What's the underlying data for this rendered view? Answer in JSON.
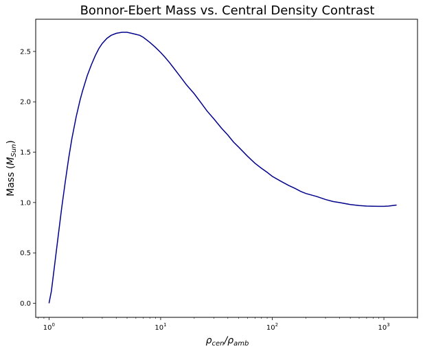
{
  "chart_data": {
    "type": "line",
    "title": "Bonnor-Ebert Mass vs. Central Density Contrast",
    "xlabel": {
      "main": "ρ",
      "sub1": "cen",
      "sep": "/ρ",
      "sub2": "amb"
    },
    "ylabel": {
      "prefix": "Mass (",
      "main": "M",
      "sub": "Sun",
      "suffix": ")"
    },
    "xscale": "log",
    "xlim": [
      0.76,
      2000
    ],
    "ylim": [
      -0.14,
      2.82
    ],
    "xticks": [
      {
        "value": 1,
        "base": "10",
        "exp": "0"
      },
      {
        "value": 10,
        "base": "10",
        "exp": "1"
      },
      {
        "value": 100,
        "base": "10",
        "exp": "2"
      },
      {
        "value": 1000,
        "base": "10",
        "exp": "3"
      }
    ],
    "yticks": [
      "0.0",
      "0.5",
      "1.0",
      "1.5",
      "2.0",
      "2.5"
    ],
    "grid": false,
    "line_color": "#00008b",
    "series": [
      {
        "x": [
          1.0,
          1.05,
          1.1,
          1.2,
          1.3,
          1.4,
          1.5,
          1.6,
          1.75,
          1.9,
          2.0,
          2.2,
          2.4,
          2.6,
          2.8,
          3.0,
          3.3,
          3.6,
          4.0,
          4.5,
          5.0,
          5.5,
          6.0,
          6.5,
          7.0,
          8.0,
          9.0,
          10.0,
          11.0,
          12.0,
          13.0,
          15.0,
          17.0,
          20.0,
          23.0,
          26.0,
          30.0,
          35.0,
          40.0,
          45.0,
          50.0,
          60.0,
          70.0,
          80.0,
          90.0,
          100.0,
          120.0,
          140.0,
          160.0,
          180.0,
          200.0,
          250.0,
          300.0,
          350.0,
          400.0,
          500.0,
          600.0,
          700.0,
          800.0,
          900.0,
          1000.0,
          1100.0,
          1300.0
        ],
        "y": [
          0.0,
          0.12,
          0.3,
          0.64,
          0.95,
          1.21,
          1.44,
          1.63,
          1.85,
          2.02,
          2.11,
          2.26,
          2.37,
          2.46,
          2.53,
          2.58,
          2.63,
          2.66,
          2.68,
          2.69,
          2.69,
          2.68,
          2.67,
          2.66,
          2.64,
          2.59,
          2.54,
          2.49,
          2.44,
          2.39,
          2.34,
          2.25,
          2.17,
          2.08,
          1.99,
          1.91,
          1.83,
          1.74,
          1.67,
          1.6,
          1.55,
          1.46,
          1.39,
          1.34,
          1.3,
          1.26,
          1.21,
          1.17,
          1.14,
          1.11,
          1.09,
          1.06,
          1.03,
          1.01,
          1.0,
          0.98,
          0.97,
          0.965,
          0.963,
          0.962,
          0.962,
          0.965,
          0.975
        ]
      }
    ]
  }
}
